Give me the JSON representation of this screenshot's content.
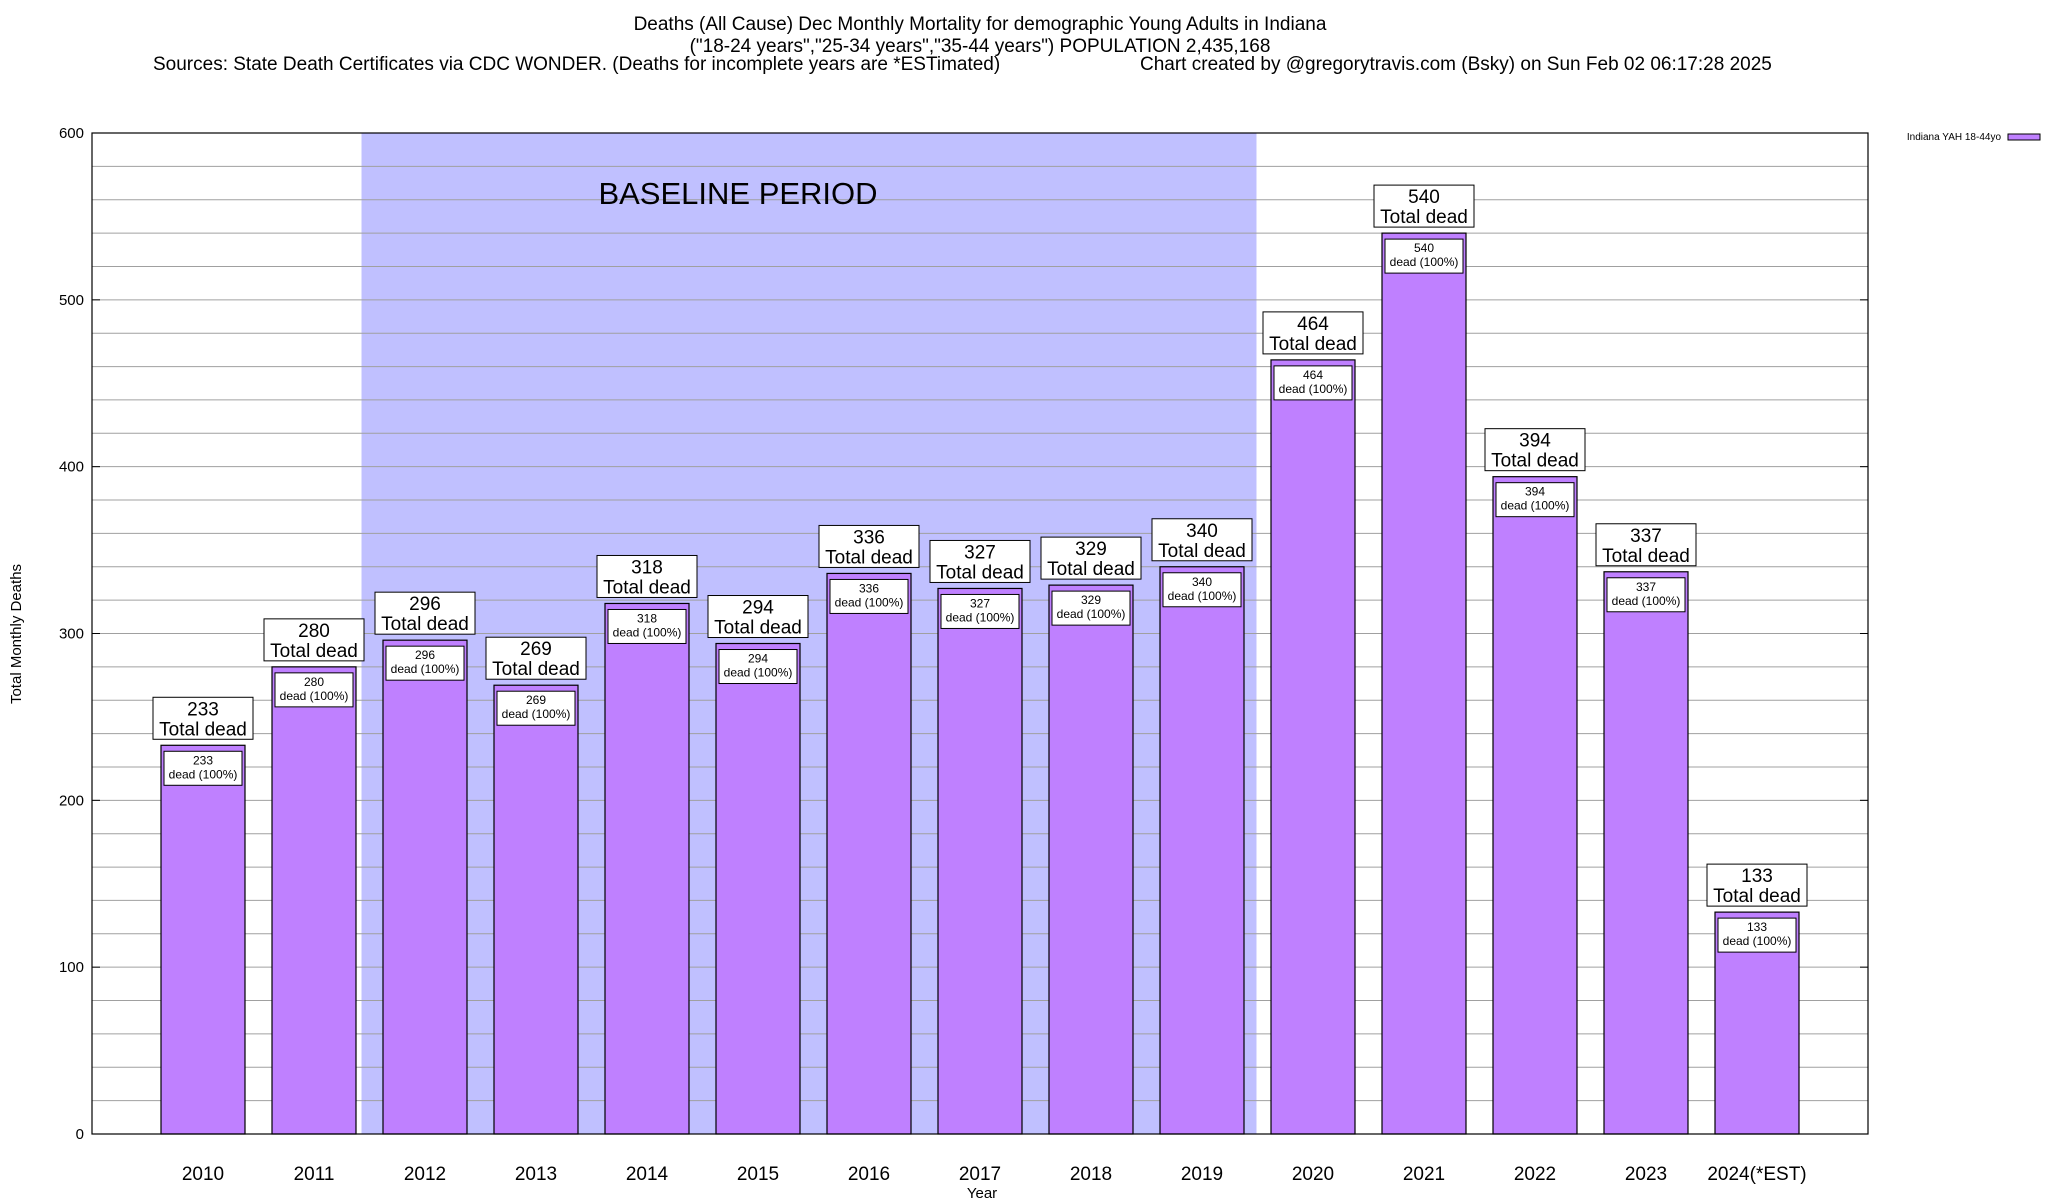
{
  "title_lines": [
    "Deaths (All Cause) Dec Monthly Mortality for demographic Young Adults in Indiana",
    "(\"18-24 years\",\"25-34 years\",\"35-44 years\") POPULATION 2,435,168"
  ],
  "sources_line": "Sources: State Death Certificates via CDC WONDER. (Deaths for incomplete years are *ESTimated)",
  "credit_line": "Chart created by @gregorytravis.com (Bsky) on Sun Feb 02 06:17:28 2025",
  "chart_data": {
    "type": "bar",
    "xlabel": "Year",
    "ylabel": "Total Monthly Deaths",
    "ylim": [
      0,
      600
    ],
    "y_major_ticks": [
      0,
      100,
      200,
      300,
      400,
      500,
      600
    ],
    "y_minor_step": 20,
    "grid": true,
    "legend_position": "top-right",
    "categories": [
      "2010",
      "2011",
      "2012",
      "2013",
      "2014",
      "2015",
      "2016",
      "2017",
      "2018",
      "2019",
      "2020",
      "2021",
      "2022",
      "2023",
      "2024(*EST)"
    ],
    "series": [
      {
        "name": "Indiana YAH 18-44yo",
        "values": [
          233,
          280,
          296,
          269,
          318,
          294,
          336,
          327,
          329,
          340,
          464,
          540,
          394,
          337,
          133
        ]
      }
    ],
    "total_label_suffix": "Total dead",
    "inner_label_suffix": "dead (100%)",
    "shaded_region": {
      "label": "BASELINE PERIOD",
      "from_category": "2012",
      "to_category": "2019"
    },
    "colors": {
      "bar": "#bf80ff",
      "baseline_shade": "#c0c0ff",
      "grid": "#a0a0a0"
    }
  }
}
